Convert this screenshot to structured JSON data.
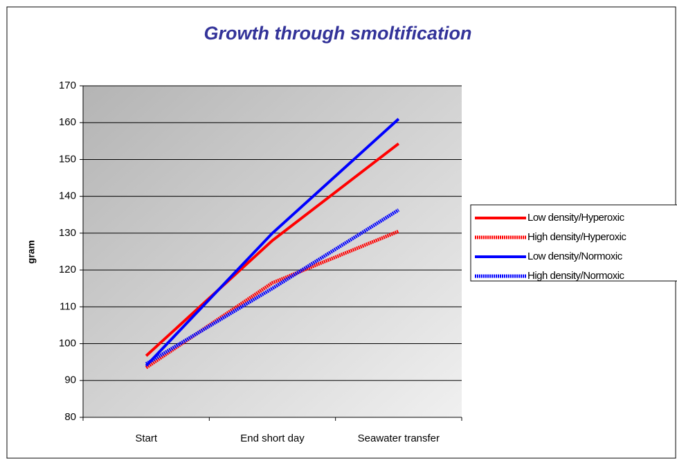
{
  "chart_data": {
    "type": "line",
    "title": "Growth through smoltification",
    "y_label": "gram",
    "categories": [
      "Start",
      "End short day",
      "Seawater transfer"
    ],
    "series": [
      {
        "name": "Low density/Hyperoxic",
        "color": "#ff0000",
        "style": "solid",
        "values": [
          96.7,
          128,
          154.3
        ]
      },
      {
        "name": "High density/Hyperoxic",
        "color": "#ff0000",
        "style": "hatched",
        "values": [
          93.5,
          116.5,
          130.5
        ]
      },
      {
        "name": "Low density/Normoxic",
        "color": "#0000ff",
        "style": "solid",
        "values": [
          94,
          130,
          161
        ]
      },
      {
        "name": "High density/Normoxic",
        "color": "#0000ff",
        "style": "hatched",
        "values": [
          94.5,
          115,
          136.3
        ]
      }
    ],
    "ylim": [
      80,
      170
    ],
    "yticks": [
      80,
      90,
      100,
      110,
      120,
      130,
      140,
      150,
      160,
      170
    ],
    "grid": true
  }
}
